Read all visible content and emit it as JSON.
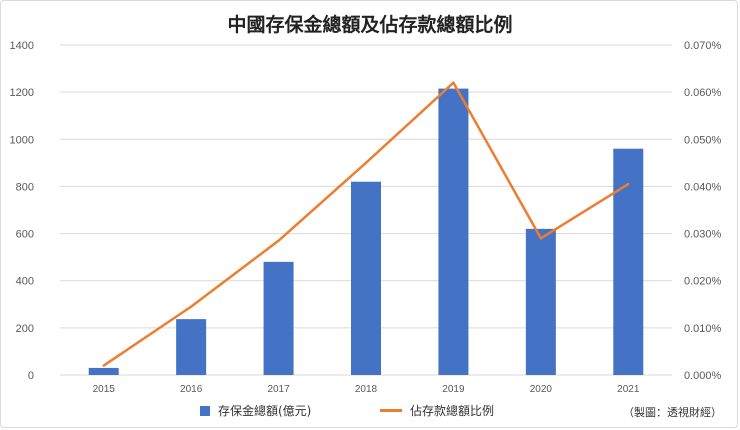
{
  "chart_data": {
    "type": "bar",
    "title": "中國存保金總額及佔存款總額比例",
    "categories": [
      "2015",
      "2016",
      "2017",
      "2018",
      "2019",
      "2020",
      "2021"
    ],
    "series": [
      {
        "name": "存保金總額(億元)",
        "type": "bar",
        "axis": "left",
        "values": [
          30,
          237,
          480,
          820,
          1215,
          620,
          960
        ]
      },
      {
        "name": "佔存款總額比例",
        "type": "line",
        "axis": "right",
        "values": [
          0.002,
          0.0145,
          0.0285,
          0.045,
          0.062,
          0.029,
          0.0405
        ]
      }
    ],
    "y_left": {
      "min": 0,
      "max": 1400,
      "ticks": [
        "0",
        "200",
        "400",
        "600",
        "800",
        "1000",
        "1200",
        "1400"
      ]
    },
    "y_right": {
      "min": 0,
      "max": 0.07,
      "ticks": [
        "0.000%",
        "0.010%",
        "0.020%",
        "0.030%",
        "0.040%",
        "0.050%",
        "0.060%",
        "0.070%"
      ]
    },
    "grid": true,
    "legend": "bottom",
    "colors": {
      "bar": "#4472c4",
      "line": "#ed7d31",
      "grid": "#d9d9d9"
    }
  },
  "source_note": "（製圖：透視財經）"
}
